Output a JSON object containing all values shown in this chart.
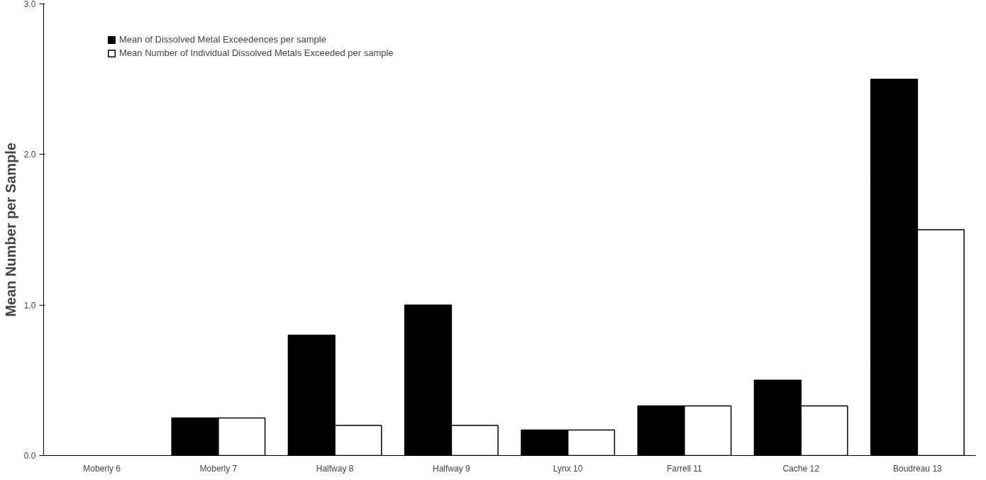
{
  "chart_data": {
    "type": "bar",
    "ylabel": "Mean Number per Sample",
    "categories": [
      "Moberly 6",
      "Moberly 7",
      "Halfway 8",
      "Halfway 9",
      "Lynx 10",
      "Farrell 11",
      "Cache 12",
      "Boudreau 13"
    ],
    "series": [
      {
        "name": "Mean of Dissolved Metal Exceedences per sample",
        "color": "#000000",
        "values": [
          0,
          0.25,
          0.8,
          1.0,
          0.17,
          0.33,
          0.5,
          2.5
        ]
      },
      {
        "name": "Mean Number of Individual Dissolved Metals Exceeded per sample",
        "color": "#ffffff",
        "values": [
          0,
          0.25,
          0.2,
          0.2,
          0.17,
          0.33,
          0.33,
          1.5
        ]
      }
    ],
    "ylim": [
      0,
      3
    ],
    "yticks": [
      {
        "value": 0,
        "label": "0.0"
      },
      {
        "value": 1,
        "label": "1.0"
      },
      {
        "value": 2,
        "label": "2.0"
      },
      {
        "value": 3,
        "label": "3.0"
      }
    ],
    "grid": false,
    "legend": "top left"
  }
}
